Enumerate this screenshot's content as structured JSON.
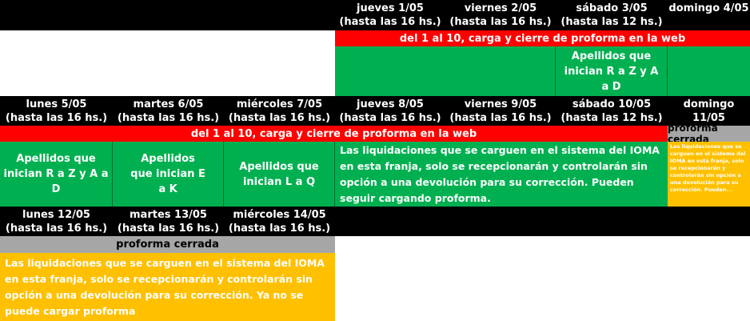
{
  "row1": {
    "headers": [
      {
        "day": "jueves 1/05",
        "hours": "(hasta las 16 hs.)"
      },
      {
        "day": "viernes 2/05",
        "hours": "(hasta las 16 hs.)"
      },
      {
        "day": "sábado 3/05",
        "hours": "(hasta las 12 hs.)"
      },
      {
        "day": "domingo 4/05",
        "hours": ""
      }
    ],
    "banner": "del 1 al 10, carga y cierre de proforma en la web",
    "sat_group": "Apellidos que inician R a Z y A a D"
  },
  "row2": {
    "headers": [
      {
        "day": "lunes 5/05",
        "hours": "(hasta las 16 hs.)"
      },
      {
        "day": "martes 6/05",
        "hours": "(hasta las 16 hs.)"
      },
      {
        "day": "miércoles 7/05",
        "hours": "(hasta las 16 hs.)"
      },
      {
        "day": "jueves 8/05",
        "hours": "(hasta las 16 hs.)"
      },
      {
        "day": "viernes 9/05",
        "hours": "(hasta las 16 hs.)"
      },
      {
        "day": "sábado 10/05",
        "hours": "(hasta las 12 hs.)"
      },
      {
        "day": "domingo 11/05",
        "hours": ""
      }
    ],
    "banner": "del 1 al 10, carga y cierre de proforma en la web",
    "closed_label": "proforma cerrada",
    "groups": [
      "Apellidos que inician R a Z y A a D",
      "Apellidos que inician E a K",
      "Apellidos que inician L a Q"
    ],
    "notice": "Las liquidaciones que se carguen en el sistema del IOMA en esta franja, solo se recepcionarán y controlarán sin opción a una devolución para su corrección. Pueden seguir cargando proforma.",
    "small_notice": "Las liquidaciones que se carguen en el sistema del IOMA en esta franja, solo se recepcionarán y controlarán sin opción a una devolución para su corrección. Pueden..."
  },
  "row3": {
    "headers": [
      {
        "day": "lunes 12/05",
        "hours": "(hasta las 16 hs.)"
      },
      {
        "day": "martes 13/05",
        "hours": "(hasta las 16 hs.)"
      },
      {
        "day": "miércoles 14/05",
        "hours": "(hasta las 16 hs.)"
      }
    ],
    "closed_label": "proforma cerrada",
    "notice": "Las liquidaciones que se carguen en el sistema del IOMA en esta franja, solo se recepcionarán y controlarán sin opción a una devolución para su corrección. Ya no se puede cargar proforma"
  },
  "colors": {
    "header": "#000000",
    "banner": "#ff0000",
    "group": "#00b050",
    "closed": "#a6a6a6",
    "notice": "#ffc000"
  }
}
